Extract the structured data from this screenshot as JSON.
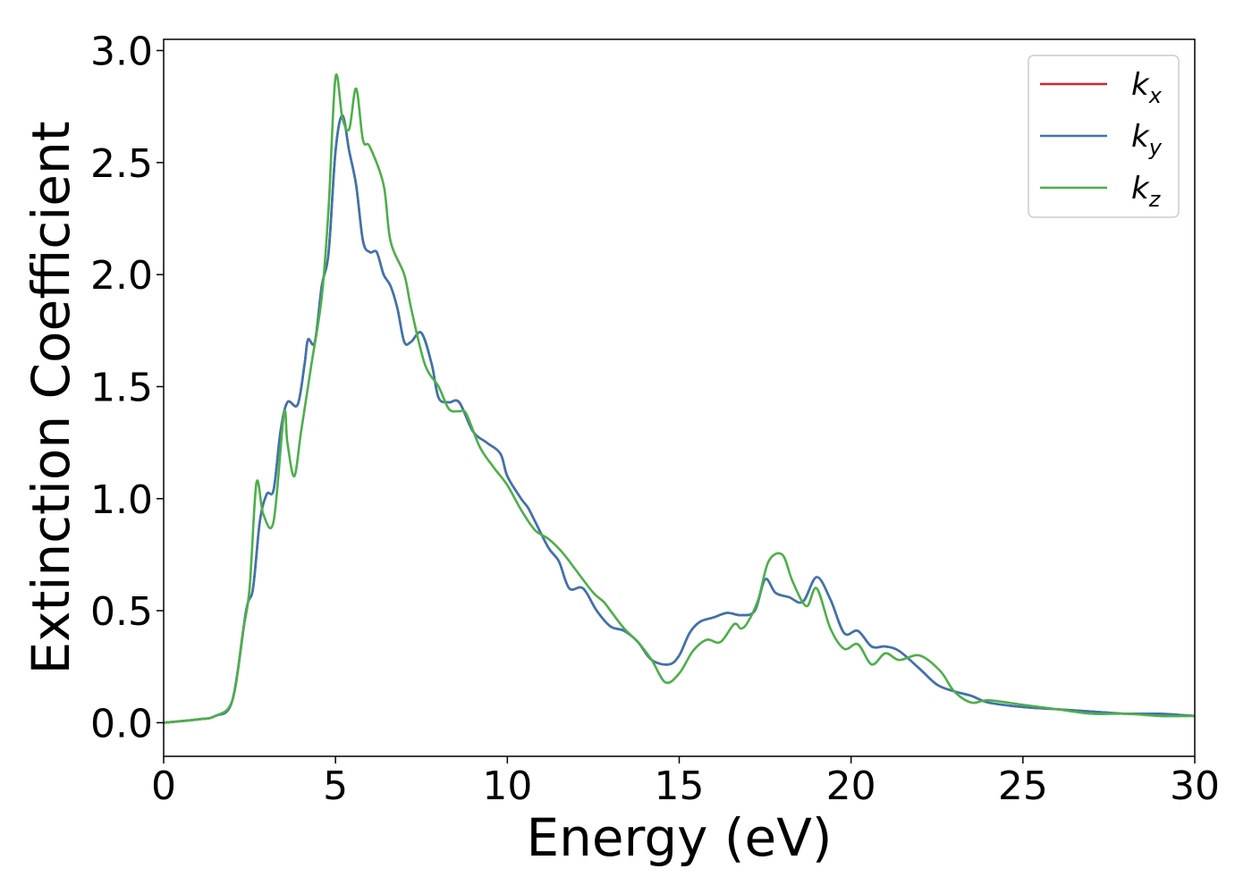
{
  "chart_data": {
    "type": "line",
    "title": "",
    "xlabel": "Energy (eV)",
    "ylabel": "Extinction Coefficient",
    "xlim": [
      0,
      30
    ],
    "ylim": [
      -0.15,
      3.05
    ],
    "x_ticks": [
      0,
      5,
      10,
      15,
      20,
      25,
      30
    ],
    "x_tick_labels": [
      "0",
      "5",
      "10",
      "15",
      "20",
      "25",
      "30"
    ],
    "y_ticks": [
      0.0,
      0.5,
      1.0,
      1.5,
      2.0,
      2.5,
      3.0
    ],
    "y_tick_labels": [
      "0.0",
      "0.5",
      "1.0",
      "1.5",
      "2.0",
      "2.5",
      "3.0"
    ],
    "grid": false,
    "legend_position": "top-right",
    "series": [
      {
        "name": "k",
        "subscript": "x",
        "color": "#d62728",
        "points": [
          [
            0,
            0
          ],
          [
            1,
            0.015
          ],
          [
            1.5,
            0.03
          ],
          [
            2,
            0.1
          ],
          [
            2.4,
            0.5
          ],
          [
            2.6,
            0.6
          ],
          [
            2.8,
            0.9
          ],
          [
            3.0,
            1.02
          ],
          [
            3.2,
            1.04
          ],
          [
            3.4,
            1.3
          ],
          [
            3.6,
            1.43
          ],
          [
            3.9,
            1.42
          ],
          [
            4.1,
            1.6
          ],
          [
            4.2,
            1.71
          ],
          [
            4.4,
            1.7
          ],
          [
            4.6,
            1.95
          ],
          [
            4.8,
            2.1
          ],
          [
            5.0,
            2.55
          ],
          [
            5.2,
            2.71
          ],
          [
            5.4,
            2.55
          ],
          [
            5.6,
            2.4
          ],
          [
            5.8,
            2.15
          ],
          [
            6.0,
            2.1
          ],
          [
            6.2,
            2.1
          ],
          [
            6.4,
            2.0
          ],
          [
            6.6,
            1.95
          ],
          [
            6.8,
            1.85
          ],
          [
            7.0,
            1.7
          ],
          [
            7.2,
            1.7
          ],
          [
            7.5,
            1.74
          ],
          [
            7.8,
            1.6
          ],
          [
            8.0,
            1.45
          ],
          [
            8.3,
            1.43
          ],
          [
            8.6,
            1.43
          ],
          [
            9.0,
            1.3
          ],
          [
            9.4,
            1.25
          ],
          [
            9.8,
            1.2
          ],
          [
            10.0,
            1.1
          ],
          [
            10.4,
            1.0
          ],
          [
            10.6,
            0.96
          ],
          [
            10.8,
            0.9
          ],
          [
            11.2,
            0.78
          ],
          [
            11.5,
            0.72
          ],
          [
            11.8,
            0.6
          ],
          [
            12.2,
            0.6
          ],
          [
            12.6,
            0.5
          ],
          [
            13.0,
            0.43
          ],
          [
            13.4,
            0.41
          ],
          [
            13.8,
            0.36
          ],
          [
            14.2,
            0.28
          ],
          [
            14.7,
            0.26
          ],
          [
            15.0,
            0.3
          ],
          [
            15.3,
            0.4
          ],
          [
            15.6,
            0.45
          ],
          [
            16.0,
            0.47
          ],
          [
            16.4,
            0.49
          ],
          [
            16.8,
            0.48
          ],
          [
            17.2,
            0.5
          ],
          [
            17.5,
            0.64
          ],
          [
            17.8,
            0.58
          ],
          [
            18.2,
            0.56
          ],
          [
            18.6,
            0.54
          ],
          [
            19.0,
            0.65
          ],
          [
            19.4,
            0.55
          ],
          [
            19.8,
            0.4
          ],
          [
            20.2,
            0.41
          ],
          [
            20.6,
            0.34
          ],
          [
            21.0,
            0.34
          ],
          [
            21.4,
            0.32
          ],
          [
            22.0,
            0.24
          ],
          [
            22.5,
            0.17
          ],
          [
            23.0,
            0.14
          ],
          [
            23.5,
            0.12
          ],
          [
            24.0,
            0.09
          ],
          [
            25.0,
            0.07
          ],
          [
            26.0,
            0.06
          ],
          [
            27.0,
            0.05
          ],
          [
            28.0,
            0.04
          ],
          [
            29.0,
            0.04
          ],
          [
            30.0,
            0.03
          ]
        ]
      },
      {
        "name": "k",
        "subscript": "y",
        "color": "#3a75b0",
        "points": [
          [
            0,
            0
          ],
          [
            1,
            0.015
          ],
          [
            1.5,
            0.03
          ],
          [
            2,
            0.1
          ],
          [
            2.4,
            0.5
          ],
          [
            2.6,
            0.6
          ],
          [
            2.8,
            0.9
          ],
          [
            3.0,
            1.02
          ],
          [
            3.2,
            1.04
          ],
          [
            3.4,
            1.3
          ],
          [
            3.6,
            1.43
          ],
          [
            3.9,
            1.42
          ],
          [
            4.1,
            1.6
          ],
          [
            4.2,
            1.71
          ],
          [
            4.4,
            1.7
          ],
          [
            4.6,
            1.95
          ],
          [
            4.8,
            2.1
          ],
          [
            5.0,
            2.55
          ],
          [
            5.2,
            2.71
          ],
          [
            5.4,
            2.55
          ],
          [
            5.6,
            2.4
          ],
          [
            5.8,
            2.15
          ],
          [
            6.0,
            2.1
          ],
          [
            6.2,
            2.1
          ],
          [
            6.4,
            2.0
          ],
          [
            6.6,
            1.95
          ],
          [
            6.8,
            1.85
          ],
          [
            7.0,
            1.7
          ],
          [
            7.2,
            1.7
          ],
          [
            7.5,
            1.74
          ],
          [
            7.8,
            1.6
          ],
          [
            8.0,
            1.45
          ],
          [
            8.3,
            1.43
          ],
          [
            8.6,
            1.43
          ],
          [
            9.0,
            1.3
          ],
          [
            9.4,
            1.25
          ],
          [
            9.8,
            1.2
          ],
          [
            10.0,
            1.1
          ],
          [
            10.4,
            1.0
          ],
          [
            10.6,
            0.96
          ],
          [
            10.8,
            0.9
          ],
          [
            11.2,
            0.78
          ],
          [
            11.5,
            0.72
          ],
          [
            11.8,
            0.6
          ],
          [
            12.2,
            0.6
          ],
          [
            12.6,
            0.5
          ],
          [
            13.0,
            0.43
          ],
          [
            13.4,
            0.41
          ],
          [
            13.8,
            0.36
          ],
          [
            14.2,
            0.28
          ],
          [
            14.7,
            0.26
          ],
          [
            15.0,
            0.3
          ],
          [
            15.3,
            0.4
          ],
          [
            15.6,
            0.45
          ],
          [
            16.0,
            0.47
          ],
          [
            16.4,
            0.49
          ],
          [
            16.8,
            0.48
          ],
          [
            17.2,
            0.5
          ],
          [
            17.5,
            0.64
          ],
          [
            17.8,
            0.58
          ],
          [
            18.2,
            0.56
          ],
          [
            18.6,
            0.54
          ],
          [
            19.0,
            0.65
          ],
          [
            19.4,
            0.55
          ],
          [
            19.8,
            0.4
          ],
          [
            20.2,
            0.41
          ],
          [
            20.6,
            0.34
          ],
          [
            21.0,
            0.34
          ],
          [
            21.4,
            0.32
          ],
          [
            22.0,
            0.24
          ],
          [
            22.5,
            0.17
          ],
          [
            23.0,
            0.14
          ],
          [
            23.5,
            0.12
          ],
          [
            24.0,
            0.09
          ],
          [
            25.0,
            0.07
          ],
          [
            26.0,
            0.06
          ],
          [
            27.0,
            0.05
          ],
          [
            28.0,
            0.04
          ],
          [
            29.0,
            0.04
          ],
          [
            30.0,
            0.03
          ]
        ]
      },
      {
        "name": "k",
        "subscript": "z",
        "color": "#4daf4a",
        "points": [
          [
            0,
            0
          ],
          [
            1,
            0.015
          ],
          [
            1.5,
            0.03
          ],
          [
            2,
            0.1
          ],
          [
            2.3,
            0.4
          ],
          [
            2.5,
            0.6
          ],
          [
            2.7,
            1.07
          ],
          [
            2.9,
            0.93
          ],
          [
            3.2,
            0.9
          ],
          [
            3.5,
            1.38
          ],
          [
            3.6,
            1.25
          ],
          [
            3.8,
            1.1
          ],
          [
            4.0,
            1.3
          ],
          [
            4.3,
            1.6
          ],
          [
            4.6,
            1.9
          ],
          [
            4.8,
            2.3
          ],
          [
            5.0,
            2.88
          ],
          [
            5.2,
            2.7
          ],
          [
            5.4,
            2.65
          ],
          [
            5.6,
            2.83
          ],
          [
            5.8,
            2.6
          ],
          [
            6.0,
            2.57
          ],
          [
            6.4,
            2.4
          ],
          [
            6.6,
            2.15
          ],
          [
            7.0,
            2.0
          ],
          [
            7.2,
            1.85
          ],
          [
            7.6,
            1.6
          ],
          [
            8.0,
            1.5
          ],
          [
            8.3,
            1.4
          ],
          [
            8.6,
            1.39
          ],
          [
            8.8,
            1.38
          ],
          [
            9.2,
            1.23
          ],
          [
            9.6,
            1.14
          ],
          [
            10.0,
            1.06
          ],
          [
            10.4,
            0.95
          ],
          [
            10.8,
            0.86
          ],
          [
            11.2,
            0.82
          ],
          [
            11.6,
            0.76
          ],
          [
            12.0,
            0.68
          ],
          [
            12.5,
            0.58
          ],
          [
            12.8,
            0.54
          ],
          [
            13.0,
            0.5
          ],
          [
            13.4,
            0.42
          ],
          [
            13.8,
            0.36
          ],
          [
            14.2,
            0.28
          ],
          [
            14.6,
            0.18
          ],
          [
            15.0,
            0.22
          ],
          [
            15.4,
            0.32
          ],
          [
            15.8,
            0.37
          ],
          [
            16.2,
            0.36
          ],
          [
            16.6,
            0.44
          ],
          [
            16.8,
            0.42
          ],
          [
            17.0,
            0.45
          ],
          [
            17.3,
            0.55
          ],
          [
            17.6,
            0.72
          ],
          [
            18.0,
            0.75
          ],
          [
            18.3,
            0.63
          ],
          [
            18.7,
            0.52
          ],
          [
            19.0,
            0.6
          ],
          [
            19.4,
            0.42
          ],
          [
            19.8,
            0.33
          ],
          [
            20.2,
            0.35
          ],
          [
            20.6,
            0.26
          ],
          [
            21.0,
            0.31
          ],
          [
            21.4,
            0.28
          ],
          [
            22.0,
            0.3
          ],
          [
            22.6,
            0.23
          ],
          [
            23.0,
            0.14
          ],
          [
            23.5,
            0.09
          ],
          [
            24.0,
            0.1
          ],
          [
            25.0,
            0.08
          ],
          [
            26.0,
            0.06
          ],
          [
            27.0,
            0.04
          ],
          [
            28.0,
            0.04
          ],
          [
            29.0,
            0.03
          ],
          [
            30.0,
            0.03
          ]
        ]
      }
    ]
  }
}
